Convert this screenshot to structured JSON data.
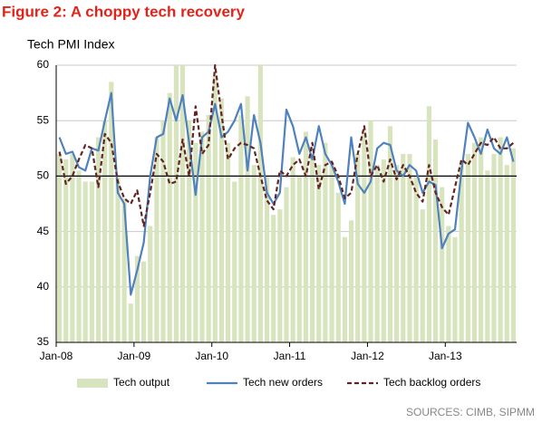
{
  "chart_data": {
    "type": "combo",
    "title": "Figure 2: A choppy tech recovery",
    "y_label": "Tech PMI Index",
    "source": "SOURCES: CIMB, SIPMM",
    "categories": [
      "Jan-08",
      null,
      null,
      null,
      null,
      null,
      null,
      null,
      null,
      null,
      null,
      null,
      "Jan-09",
      null,
      null,
      null,
      null,
      null,
      null,
      null,
      null,
      null,
      null,
      null,
      "Jan-10",
      null,
      null,
      null,
      null,
      null,
      null,
      null,
      null,
      null,
      null,
      null,
      "Jan-11",
      null,
      null,
      null,
      null,
      null,
      null,
      null,
      null,
      null,
      null,
      null,
      "Jan-12",
      null,
      null,
      null,
      null,
      null,
      null,
      null,
      null,
      null,
      null,
      null,
      "Jan-13",
      null,
      null,
      null,
      null,
      null,
      null,
      null,
      null,
      null,
      null
    ],
    "series": [
      {
        "name": "Tech output",
        "type": "bar",
        "color": "#d7e4bd",
        "values": [
          52,
          51.5,
          52,
          50.5,
          49.5,
          49.5,
          53.5,
          55,
          58.5,
          50,
          48,
          38.5,
          42.8,
          42.3,
          45.5,
          53.5,
          55,
          57.5,
          60,
          60,
          55,
          53,
          54,
          55.5,
          59,
          57,
          53,
          49.5,
          55.5,
          57.2,
          51,
          60,
          50,
          46.5,
          47,
          49,
          51.7,
          50,
          54,
          52,
          51,
          53,
          51,
          48.5,
          44.5,
          46,
          52,
          54,
          55,
          51,
          51.5,
          54.5,
          51,
          52,
          52,
          50,
          47,
          56.3,
          53.3,
          49,
          45.5,
          44.5,
          51,
          52,
          53,
          53.5,
          50.5,
          52,
          53.5,
          51,
          52.5
        ]
      },
      {
        "name": "Tech new orders",
        "type": "line",
        "color": "#4f81bd",
        "values": [
          53.5,
          52,
          52.2,
          50.8,
          50.5,
          52.5,
          52.3,
          55,
          57.5,
          48.5,
          47.5,
          39.3,
          41.5,
          44,
          50,
          53.5,
          53.8,
          57,
          55,
          57.3,
          53,
          48.3,
          53.5,
          54,
          56.5,
          53.5,
          54,
          55,
          56.5,
          50.5,
          55.5,
          53,
          48.5,
          47.5,
          48.5,
          56,
          54.5,
          52,
          53.5,
          51.5,
          54.5,
          52,
          51,
          49.5,
          47.5,
          53.5,
          49.3,
          48.5,
          49.5,
          52.5,
          53,
          52.8,
          50.5,
          50,
          51,
          50.5,
          48.5,
          49.5,
          49.2,
          43.5,
          44.8,
          45.2,
          50.5,
          54.8,
          53.5,
          52,
          54.2,
          52.5,
          52,
          53.5,
          51.3
        ]
      },
      {
        "name": "Tech backlog orders",
        "type": "line",
        "dashed": true,
        "color": "#632523",
        "values": [
          52.2,
          49.3,
          50,
          51.5,
          52.8,
          52.5,
          49,
          53.8,
          53,
          49.5,
          48,
          47.5,
          48.7,
          45.5,
          48.5,
          52,
          51.3,
          49.3,
          49.5,
          53.3,
          50,
          56.3,
          52,
          52.8,
          60,
          55.5,
          51.5,
          52.5,
          53,
          52.8,
          52.5,
          50,
          47.8,
          47,
          50.5,
          50,
          51,
          51.5,
          50,
          53,
          48.8,
          51,
          51.3,
          50,
          48,
          48.5,
          52,
          54.5,
          50,
          51,
          49.5,
          51.5,
          49.7,
          51,
          50,
          48.5,
          47.7,
          51,
          48.5,
          47.2,
          46.5,
          49,
          51.5,
          51,
          52,
          53,
          52.8,
          53.5,
          52.5,
          52.5,
          53
        ]
      }
    ],
    "ylim": [
      35,
      60
    ],
    "yticks": [
      35,
      40,
      45,
      50,
      55,
      60
    ],
    "grid": true,
    "reference_line": 50,
    "legend": "bottom"
  }
}
